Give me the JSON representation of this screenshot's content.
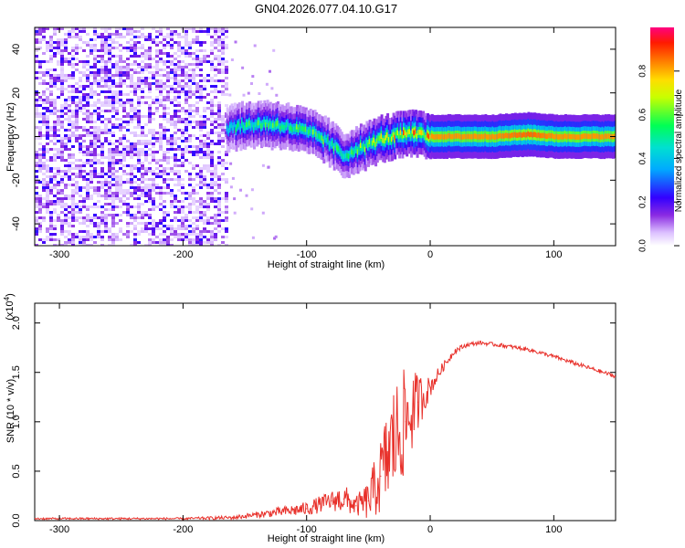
{
  "figure_title": "GN04.2026.077.04.10.G17",
  "chart_data": [
    {
      "type": "heatmap",
      "title": "GN04.2026.077.04.10.G17",
      "xlabel": "Height of straight line (km)",
      "ylabel": "Frequency (Hz)",
      "xlim": [
        -320,
        150
      ],
      "ylim": [
        -50,
        50
      ],
      "xticks": [
        -300,
        -200,
        -100,
        0,
        100
      ],
      "yticks": [
        -40,
        -20,
        0,
        20,
        40
      ],
      "xtick_labels": [
        "-300",
        "-200",
        "-100",
        "0",
        "100"
      ],
      "ytick_labels": [
        "-40",
        "-20",
        "0",
        "20",
        "40"
      ],
      "colorbar": {
        "label": "Normalized spectral amplitude",
        "range": [
          0.0,
          1.0
        ],
        "ticks": [
          0.0,
          0.2,
          0.4,
          0.6,
          0.8
        ],
        "tick_labels": [
          "0.0",
          "0.2",
          "0.4",
          "0.6",
          "0.8"
        ],
        "colors": [
          "#ffffff",
          "#d9b3ff",
          "#8a2be2",
          "#3300ff",
          "#00ccff",
          "#00ff66",
          "#ffff00",
          "#ff8800",
          "#ff0000",
          "#ff0080"
        ]
      },
      "noise_region_x": [
        -320,
        -165
      ],
      "ridge": {
        "x": [
          -165,
          -150,
          -135,
          -120,
          -105,
          -90,
          -80,
          -70,
          -62,
          -55,
          -48,
          -40,
          -30,
          -20,
          -10,
          0,
          20,
          50,
          80,
          100,
          120,
          150
        ],
        "freq_hz": [
          4,
          5,
          6,
          5,
          3,
          0,
          -4,
          -9,
          -6,
          -5,
          -3,
          -1,
          0,
          1,
          1,
          0,
          0,
          0,
          1,
          0,
          0,
          0
        ],
        "amplitude": [
          0.45,
          0.5,
          0.55,
          0.55,
          0.55,
          0.55,
          0.5,
          0.5,
          0.55,
          0.6,
          0.65,
          0.7,
          0.75,
          0.8,
          0.8,
          0.85,
          0.85,
          0.85,
          0.9,
          0.85,
          0.85,
          0.85
        ]
      }
    },
    {
      "type": "line",
      "xlabel": "Height of straight line (km)",
      "ylabel": "SNR (10 * v/v)",
      "y_scale_label": "(x10",
      "y_scale_exp": "4",
      "xlim": [
        -320,
        150
      ],
      "ylim": [
        0,
        2.2
      ],
      "xticks": [
        -300,
        -200,
        -100,
        0,
        100
      ],
      "yticks": [
        0.0,
        0.5,
        1.0,
        1.5,
        2.0
      ],
      "xtick_labels": [
        "-300",
        "-200",
        "-100",
        "0",
        "100"
      ],
      "ytick_labels": [
        "0.0",
        "0.5",
        "1.0",
        "1.5",
        "2.0"
      ],
      "color": "#e8302a",
      "series": [
        {
          "name": "SNR",
          "x": [
            -320,
            -250,
            -200,
            -160,
            -140,
            -120,
            -100,
            -80,
            -70,
            -60,
            -50,
            -40,
            -30,
            -20,
            -10,
            0,
            10,
            20,
            30,
            40,
            60,
            80,
            100,
            120,
            150
          ],
          "y": [
            0.02,
            0.02,
            0.02,
            0.03,
            0.06,
            0.09,
            0.12,
            0.2,
            0.22,
            0.15,
            0.2,
            0.45,
            0.8,
            1.0,
            1.2,
            1.35,
            1.55,
            1.72,
            1.78,
            1.8,
            1.77,
            1.73,
            1.66,
            1.58,
            1.46
          ],
          "spread": [
            0.01,
            0.01,
            0.01,
            0.02,
            0.03,
            0.05,
            0.07,
            0.1,
            0.15,
            0.1,
            0.2,
            0.4,
            0.6,
            0.55,
            0.3,
            0.1,
            0.05,
            0.03,
            0.02,
            0.02,
            0.02,
            0.02,
            0.02,
            0.02,
            0.02
          ]
        }
      ]
    }
  ]
}
